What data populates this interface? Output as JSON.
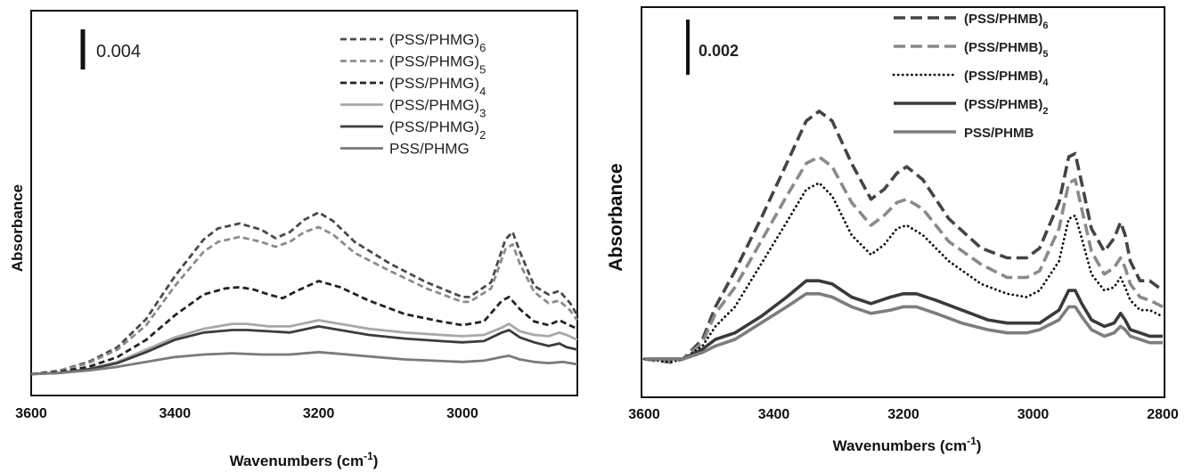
{
  "chart_data": [
    {
      "type": "line",
      "ylabel": "Absorbance",
      "xlabel": "Wavenumbers (cm",
      "xlabel_sup": "-1",
      "xlabel_suffix": ")",
      "xlim": [
        3600,
        2840
      ],
      "x_reversed": true,
      "x_ticks": [
        "3600",
        "3400",
        "3200",
        "3000"
      ],
      "scale_bar_label": "0.004",
      "legend_position": "top-right",
      "series": [
        {
          "name": "(PSS/PHMG)",
          "sub": "6",
          "color": "#4a4a4a",
          "dash": "dashed",
          "x": [
            3600,
            3560,
            3520,
            3480,
            3440,
            3400,
            3360,
            3340,
            3310,
            3280,
            3260,
            3240,
            3220,
            3200,
            3180,
            3150,
            3100,
            3050,
            3000,
            2990,
            2960,
            2940,
            2930,
            2920,
            2900,
            2880,
            2865,
            2850,
            2840
          ],
          "y": [
            0.0,
            0.0003,
            0.001,
            0.0022,
            0.0045,
            0.008,
            0.011,
            0.0119,
            0.0123,
            0.0118,
            0.0111,
            0.0116,
            0.0126,
            0.0132,
            0.0125,
            0.0108,
            0.009,
            0.0075,
            0.0063,
            0.0063,
            0.0075,
            0.011,
            0.0116,
            0.01,
            0.0072,
            0.0065,
            0.0068,
            0.0058,
            0.0048
          ]
        },
        {
          "name": "(PSS/PHMG)",
          "sub": "5",
          "color": "#8c8c8c",
          "dash": "dashed",
          "x": [
            3600,
            3560,
            3520,
            3480,
            3440,
            3400,
            3360,
            3340,
            3310,
            3280,
            3260,
            3240,
            3220,
            3200,
            3180,
            3150,
            3100,
            3050,
            3000,
            2990,
            2960,
            2940,
            2930,
            2920,
            2900,
            2880,
            2865,
            2850,
            2840
          ],
          "y": [
            0.0,
            0.0003,
            0.0009,
            0.002,
            0.004,
            0.0072,
            0.01,
            0.0108,
            0.0112,
            0.0108,
            0.0104,
            0.0108,
            0.0116,
            0.012,
            0.0114,
            0.0099,
            0.0084,
            0.007,
            0.0059,
            0.0059,
            0.007,
            0.0102,
            0.0106,
            0.009,
            0.0067,
            0.0058,
            0.006,
            0.0052,
            0.0044
          ]
        },
        {
          "name": "(PSS/PHMG)",
          "sub": "4",
          "color": "#222222",
          "dash": "dashed",
          "x": [
            3600,
            3560,
            3520,
            3480,
            3440,
            3400,
            3360,
            3330,
            3310,
            3290,
            3270,
            3250,
            3230,
            3200,
            3170,
            3130,
            3080,
            3030,
            3000,
            2970,
            2945,
            2935,
            2920,
            2900,
            2880,
            2865,
            2855,
            2840
          ],
          "y": [
            0.0,
            0.0002,
            0.0006,
            0.0014,
            0.0028,
            0.0048,
            0.0065,
            0.007,
            0.0071,
            0.0069,
            0.0065,
            0.0062,
            0.0068,
            0.0076,
            0.0071,
            0.006,
            0.0049,
            0.0043,
            0.004,
            0.0043,
            0.006,
            0.0063,
            0.0053,
            0.0043,
            0.004,
            0.0044,
            0.0041,
            0.0037
          ]
        },
        {
          "name": "(PSS/PHMG)",
          "sub": "3",
          "color": "#a8a8a8",
          "dash": "solid",
          "x": [
            3600,
            3560,
            3520,
            3480,
            3440,
            3400,
            3360,
            3320,
            3300,
            3270,
            3240,
            3200,
            3170,
            3130,
            3080,
            3030,
            3000,
            2970,
            2945,
            2935,
            2920,
            2900,
            2880,
            2865,
            2855,
            2840
          ],
          "y": [
            0.0,
            0.0001,
            0.0004,
            0.001,
            0.002,
            0.003,
            0.0037,
            0.0041,
            0.0041,
            0.0039,
            0.0039,
            0.0044,
            0.0041,
            0.0037,
            0.0034,
            0.0032,
            0.0031,
            0.0032,
            0.0038,
            0.0041,
            0.0035,
            0.0032,
            0.0031,
            0.0034,
            0.0032,
            0.0028
          ]
        },
        {
          "name": "(PSS/PHMG)",
          "sub": "2",
          "color": "#3c3c3c",
          "dash": "solid",
          "x": [
            3600,
            3560,
            3520,
            3480,
            3440,
            3400,
            3360,
            3320,
            3300,
            3270,
            3240,
            3200,
            3170,
            3130,
            3080,
            3030,
            3000,
            2970,
            2945,
            2935,
            2920,
            2900,
            2880,
            2865,
            2855,
            2840
          ],
          "y": [
            0.0,
            0.0001,
            0.0004,
            0.0009,
            0.0018,
            0.0028,
            0.0034,
            0.0036,
            0.0036,
            0.0035,
            0.0034,
            0.0039,
            0.0036,
            0.0032,
            0.0029,
            0.0027,
            0.0026,
            0.0027,
            0.0034,
            0.0036,
            0.003,
            0.0026,
            0.0023,
            0.0025,
            0.0022,
            0.002
          ]
        },
        {
          "name": "PSS/PHMG",
          "sub": "",
          "color": "#7a7a7a",
          "dash": "solid",
          "x": [
            3600,
            3560,
            3520,
            3480,
            3440,
            3400,
            3360,
            3320,
            3280,
            3240,
            3200,
            3160,
            3120,
            3080,
            3040,
            3000,
            2970,
            2945,
            2935,
            2920,
            2900,
            2880,
            2860,
            2840
          ],
          "y": [
            0.0,
            0.0001,
            0.0003,
            0.0006,
            0.001,
            0.0014,
            0.0016,
            0.0017,
            0.0016,
            0.0016,
            0.0018,
            0.0016,
            0.0014,
            0.0012,
            0.0011,
            0.001,
            0.0011,
            0.0014,
            0.0015,
            0.0012,
            0.001,
            0.0009,
            0.001,
            0.0008
          ]
        }
      ]
    },
    {
      "type": "line",
      "ylabel": "Absorbance",
      "xlabel": "Wavenumbers (cm",
      "xlabel_sup": "-1",
      "xlabel_suffix": ")",
      "xlim": [
        3600,
        2800
      ],
      "x_reversed": true,
      "x_ticks": [
        "3600",
        "3400",
        "3200",
        "3000",
        "2800"
      ],
      "scale_bar_label": "0.002",
      "legend_position": "top-right",
      "series": [
        {
          "name": "(PSS/PHMB)",
          "sub": "6",
          "color": "#444444",
          "dash": "dashed",
          "x": [
            3600,
            3560,
            3540,
            3510,
            3490,
            3460,
            3420,
            3380,
            3350,
            3330,
            3310,
            3280,
            3250,
            3230,
            3210,
            3195,
            3170,
            3130,
            3080,
            3040,
            3010,
            2990,
            2960,
            2945,
            2935,
            2925,
            2910,
            2890,
            2875,
            2865,
            2858,
            2850,
            2835,
            2820,
            2800
          ],
          "y": [
            0.0,
            -0.0001,
            0.0,
            0.0006,
            0.0016,
            0.0027,
            0.0043,
            0.006,
            0.0073,
            0.0076,
            0.0073,
            0.006,
            0.0049,
            0.0052,
            0.0057,
            0.0059,
            0.0055,
            0.0043,
            0.0034,
            0.0031,
            0.0031,
            0.0034,
            0.0048,
            0.0062,
            0.0063,
            0.0054,
            0.004,
            0.0033,
            0.0037,
            0.0042,
            0.0038,
            0.003,
            0.0024,
            0.0024,
            0.0021
          ]
        },
        {
          "name": "(PSS/PHMB)",
          "sub": "5",
          "color": "#8a8a8a",
          "dash": "dashed",
          "x": [
            3600,
            3560,
            3540,
            3510,
            3490,
            3460,
            3420,
            3380,
            3350,
            3330,
            3310,
            3280,
            3250,
            3230,
            3210,
            3195,
            3170,
            3130,
            3080,
            3040,
            3010,
            2990,
            2960,
            2945,
            2935,
            2925,
            2910,
            2890,
            2875,
            2865,
            2858,
            2850,
            2835,
            2820,
            2800
          ],
          "y": [
            0.0,
            -0.0001,
            0.0,
            0.0005,
            0.0014,
            0.0022,
            0.0036,
            0.005,
            0.006,
            0.0062,
            0.0059,
            0.0048,
            0.0041,
            0.0044,
            0.0048,
            0.0049,
            0.0046,
            0.0036,
            0.0029,
            0.0025,
            0.0025,
            0.0027,
            0.004,
            0.0054,
            0.0055,
            0.0046,
            0.0033,
            0.0026,
            0.0028,
            0.0031,
            0.0028,
            0.0023,
            0.0019,
            0.0018,
            0.0016
          ]
        },
        {
          "name": "(PSS/PHMB)",
          "sub": "4",
          "color": "#111111",
          "dash": "dotted",
          "x": [
            3600,
            3560,
            3540,
            3510,
            3490,
            3460,
            3420,
            3380,
            3350,
            3330,
            3310,
            3280,
            3250,
            3230,
            3210,
            3195,
            3170,
            3130,
            3080,
            3040,
            3010,
            2990,
            2960,
            2945,
            2935,
            2925,
            2910,
            2890,
            2875,
            2865,
            2858,
            2850,
            2835,
            2820,
            2800
          ],
          "y": [
            0.0,
            -0.0001,
            0.0,
            0.0004,
            0.001,
            0.0016,
            0.0029,
            0.0042,
            0.0052,
            0.0054,
            0.005,
            0.0038,
            0.0032,
            0.0035,
            0.004,
            0.0041,
            0.0038,
            0.003,
            0.0023,
            0.002,
            0.0019,
            0.0021,
            0.003,
            0.0043,
            0.0044,
            0.0037,
            0.0026,
            0.0021,
            0.0022,
            0.0025,
            0.0022,
            0.0018,
            0.0015,
            0.0015,
            0.0013
          ]
        },
        {
          "name": "(PSS/PHMB)",
          "sub": "2",
          "color": "#3a3a3a",
          "dash": "solid",
          "x": [
            3600,
            3560,
            3540,
            3510,
            3490,
            3460,
            3420,
            3380,
            3350,
            3330,
            3310,
            3280,
            3250,
            3220,
            3200,
            3180,
            3150,
            3110,
            3070,
            3040,
            3010,
            2990,
            2960,
            2945,
            2935,
            2925,
            2910,
            2890,
            2875,
            2865,
            2858,
            2850,
            2835,
            2820,
            2800
          ],
          "y": [
            0.0,
            0.0,
            0.0,
            0.0003,
            0.0006,
            0.0008,
            0.0013,
            0.0019,
            0.0024,
            0.0024,
            0.0023,
            0.0019,
            0.0017,
            0.0019,
            0.002,
            0.002,
            0.0018,
            0.0015,
            0.0012,
            0.0011,
            0.0011,
            0.0011,
            0.0015,
            0.0021,
            0.0021,
            0.0017,
            0.0012,
            0.001,
            0.0011,
            0.0014,
            0.0012,
            0.0009,
            0.0008,
            0.0007,
            0.0007
          ]
        },
        {
          "name": "PSS/PHMB",
          "sub": "",
          "color": "#7d7d7d",
          "dash": "solid",
          "x": [
            3600,
            3560,
            3540,
            3510,
            3490,
            3460,
            3420,
            3380,
            3350,
            3330,
            3310,
            3280,
            3250,
            3220,
            3200,
            3180,
            3150,
            3110,
            3070,
            3040,
            3010,
            2990,
            2960,
            2945,
            2935,
            2925,
            2910,
            2890,
            2875,
            2865,
            2858,
            2850,
            2835,
            2820,
            2800
          ],
          "y": [
            0.0,
            0.0,
            0.0,
            0.0002,
            0.0004,
            0.0006,
            0.0011,
            0.0016,
            0.002,
            0.002,
            0.0019,
            0.0016,
            0.0014,
            0.0015,
            0.0016,
            0.0016,
            0.0014,
            0.0011,
            0.0009,
            0.0008,
            0.0008,
            0.0009,
            0.0012,
            0.0016,
            0.0016,
            0.0013,
            0.0009,
            0.0007,
            0.0008,
            0.001,
            0.0009,
            0.0007,
            0.0006,
            0.0005,
            0.0005
          ]
        }
      ]
    }
  ]
}
